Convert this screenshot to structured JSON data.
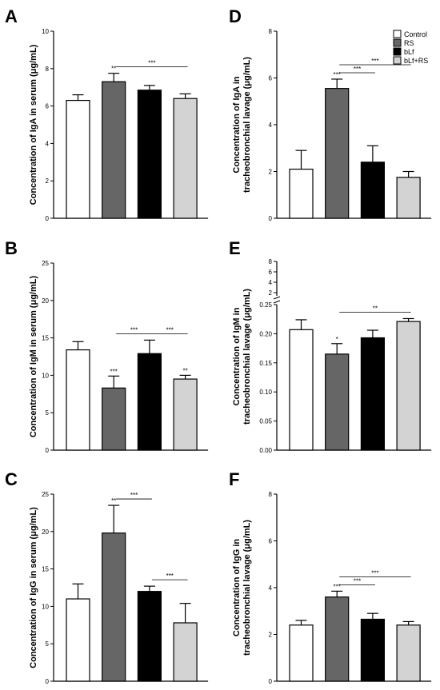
{
  "colors": {
    "Control": "#ffffff",
    "RS": "#666666",
    "bLf": "#000000",
    "bLf+RS": "#d3d3d3",
    "axis": "#000000"
  },
  "legend": {
    "placement": "top-right",
    "entries": [
      "Control",
      "RS",
      "bLf",
      "bLf+RS"
    ]
  },
  "chart_data": [
    {
      "panel": "A",
      "type": "bar",
      "categories": [
        "Control",
        "RS",
        "bLf",
        "bLf+RS"
      ],
      "values": [
        6.3,
        7.3,
        6.85,
        6.4
      ],
      "errors": [
        0.3,
        0.45,
        0.25,
        0.25
      ],
      "ylabel": "Concentration of IgA in serum (μg/mL)",
      "ylim": [
        0,
        10
      ],
      "yticks": [
        0,
        2,
        4,
        6,
        8,
        10
      ],
      "star_labels": [
        {
          "bar": 1,
          "text": "**"
        }
      ],
      "comparisons": [
        {
          "from": 1,
          "to": 3,
          "text": "***"
        }
      ]
    },
    {
      "panel": "D",
      "type": "bar",
      "categories": [
        "Control",
        "RS",
        "bLf",
        "bLf+RS"
      ],
      "values": [
        2.1,
        5.55,
        2.4,
        1.75
      ],
      "errors": [
        0.8,
        0.4,
        0.7,
        0.25
      ],
      "ylabel": "Concentration of IgA in tracheobronchial lavage (μg/mL)",
      "ylim": [
        0,
        8
      ],
      "yticks": [
        0,
        2,
        4,
        6,
        8
      ],
      "star_labels": [
        {
          "bar": 1,
          "text": "***"
        }
      ],
      "comparisons": [
        {
          "from": 1,
          "to": 2,
          "text": "***"
        },
        {
          "from": 1,
          "to": 3,
          "text": "***"
        }
      ]
    },
    {
      "panel": "B",
      "type": "bar",
      "categories": [
        "Control",
        "RS",
        "bLf",
        "bLf+RS"
      ],
      "values": [
        13.4,
        8.3,
        12.9,
        9.5
      ],
      "errors": [
        1.1,
        1.6,
        1.8,
        0.5
      ],
      "ylabel": "Concentration of IgM in serum (μg/mL)",
      "ylim": [
        0,
        25
      ],
      "yticks": [
        0,
        5,
        10,
        15,
        20,
        25
      ],
      "star_labels": [
        {
          "bar": 1,
          "text": "***"
        },
        {
          "bar": 3,
          "text": "**"
        }
      ],
      "comparisons": [
        {
          "from": 1,
          "to": 2,
          "text": "***"
        },
        {
          "from": 2,
          "to": 3,
          "text": "***"
        }
      ]
    },
    {
      "panel": "E",
      "type": "bar",
      "categories": [
        "Control",
        "RS",
        "bLf",
        "bLf+RS"
      ],
      "values": [
        0.207,
        0.165,
        0.193,
        0.221
      ],
      "errors": [
        0.017,
        0.018,
        0.013,
        0.005
      ],
      "ylabel": "Concentration of IgM in tracheobronchial lavage (μg/mL)",
      "ylim": [
        0,
        0.25
      ],
      "yticks": [
        0.0,
        0.05,
        0.1,
        0.15,
        0.2,
        0.25
      ],
      "ytick_labels": [
        "0.00",
        "0.05",
        "0.10",
        "0.15",
        "0.20",
        "0.25"
      ],
      "broken_axis_upper_ticks": [
        "2",
        "4",
        "6",
        "8"
      ],
      "star_labels": [
        {
          "bar": 1,
          "text": "*"
        }
      ],
      "comparisons": [
        {
          "from": 1,
          "to": 3,
          "text": "**"
        }
      ]
    },
    {
      "panel": "C",
      "type": "bar",
      "categories": [
        "Control",
        "RS",
        "bLf",
        "bLf+RS"
      ],
      "values": [
        11.0,
        19.8,
        12.0,
        7.8
      ],
      "errors": [
        2.0,
        3.7,
        0.7,
        2.6
      ],
      "ylabel": "Concentration of IgG in serum (μg/mL)",
      "ylim": [
        0,
        25
      ],
      "yticks": [
        0,
        5,
        10,
        15,
        20,
        25
      ],
      "star_labels": [
        {
          "bar": 1,
          "text": "**"
        }
      ],
      "comparisons": [
        {
          "from": 1,
          "to": 2,
          "text": "***"
        },
        {
          "from": 2,
          "to": 3,
          "text": "***"
        }
      ]
    },
    {
      "panel": "F",
      "type": "bar",
      "categories": [
        "Control",
        "RS",
        "bLf",
        "bLf+RS"
      ],
      "values": [
        2.4,
        3.6,
        2.65,
        2.4
      ],
      "errors": [
        0.2,
        0.25,
        0.25,
        0.15
      ],
      "ylabel": "Concentration of IgG in tracheobronchial lavage (μg/mL)",
      "ylim": [
        0,
        8
      ],
      "yticks": [
        0,
        2,
        4,
        6,
        8
      ],
      "star_labels": [
        {
          "bar": 1,
          "text": "***"
        }
      ],
      "comparisons": [
        {
          "from": 1,
          "to": 2,
          "text": "***"
        },
        {
          "from": 1,
          "to": 3,
          "text": "***"
        }
      ]
    }
  ]
}
